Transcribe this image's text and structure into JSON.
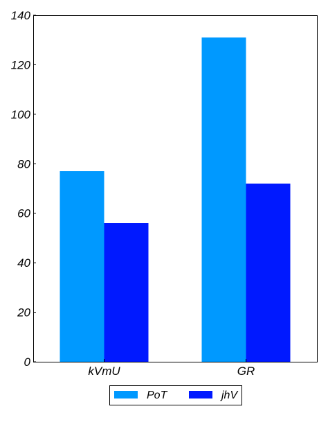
{
  "chart_data": {
    "type": "bar",
    "categories": [
      "kVmU",
      "GR"
    ],
    "series": [
      {
        "name": "PoT",
        "values": [
          77,
          131
        ],
        "color": "#0099ff"
      },
      {
        "name": "jhV",
        "values": [
          56,
          72
        ],
        "color": "#0019ff"
      }
    ],
    "ylim": [
      0,
      140
    ],
    "yticks": [
      0,
      20,
      40,
      60,
      80,
      100,
      120,
      140
    ],
    "title": "",
    "xlabel": "",
    "ylabel": "",
    "grid": false,
    "legend": "bottom-center"
  }
}
